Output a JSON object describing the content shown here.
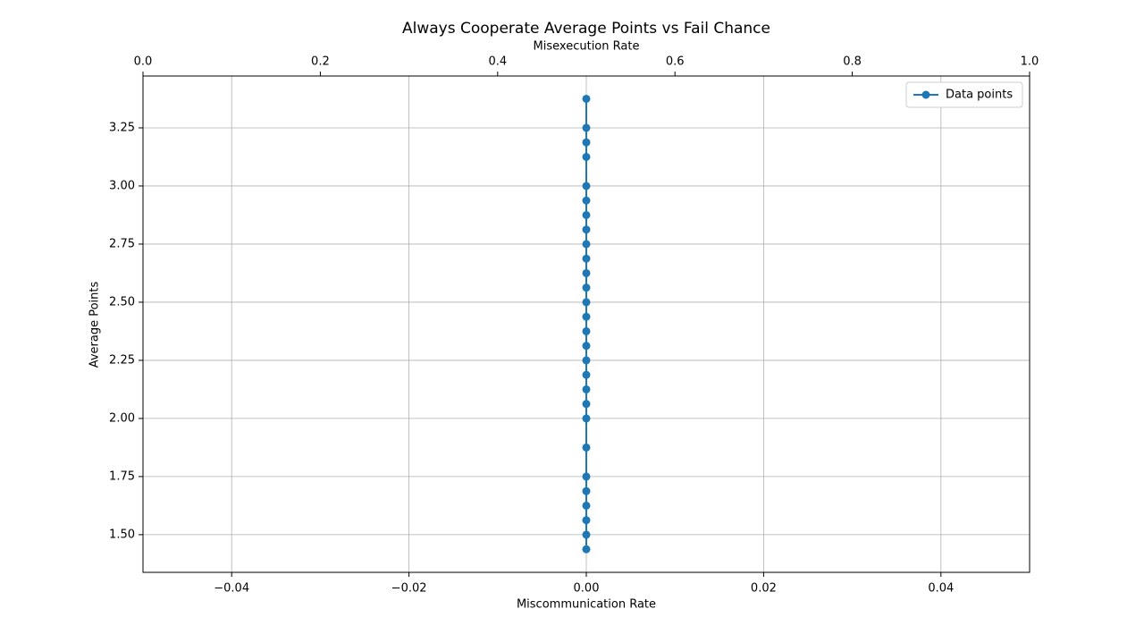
{
  "chart_data": {
    "type": "line",
    "title": "Always Cooperate Average Points vs Fail Chance",
    "xlabel": "Miscommunication Rate",
    "ylabel": "Average Points",
    "x2label": "Misexecution Rate",
    "xlim": [
      -0.05,
      0.05
    ],
    "xticks": [
      {
        "value": -0.04,
        "label": "−0.04"
      },
      {
        "value": -0.02,
        "label": "−0.02"
      },
      {
        "value": 0,
        "label": "0.00"
      },
      0.02,
      0.04
    ],
    "x2lim": [
      0,
      1
    ],
    "x2ticks": [
      {
        "value": 0,
        "label": "0.0"
      },
      0.2,
      0.4,
      0.6,
      0.8,
      {
        "value": 1,
        "label": "1.0"
      }
    ],
    "ylim": [
      1.338,
      3.473
    ],
    "yticks": [
      {
        "value": 1.5,
        "label": "1.50"
      },
      1.75,
      {
        "value": 2,
        "label": "2.00"
      },
      2.25,
      {
        "value": 2.5,
        "label": "2.50"
      },
      2.75,
      {
        "value": 3,
        "label": "3.00"
      },
      3.25
    ],
    "grid": true,
    "legend": "upper right",
    "x": [
      0,
      0,
      0,
      0,
      0,
      0,
      0,
      0,
      0,
      0,
      0,
      0,
      0,
      0,
      0,
      0,
      0,
      0,
      0,
      0,
      0,
      0,
      0,
      0,
      0,
      0,
      0,
      0
    ],
    "series": [
      {
        "name": "Data points",
        "color": "#1f77b4",
        "values": [
          3.375,
          3.25,
          3.1875,
          3.125,
          3.0,
          2.9375,
          2.875,
          2.8125,
          2.75,
          2.6875,
          2.625,
          2.5625,
          2.5,
          2.4375,
          2.375,
          2.3125,
          2.25,
          2.1875,
          2.125,
          2.0625,
          2.0,
          1.875,
          1.75,
          1.6875,
          1.625,
          1.5625,
          1.5,
          1.4375
        ]
      }
    ]
  }
}
